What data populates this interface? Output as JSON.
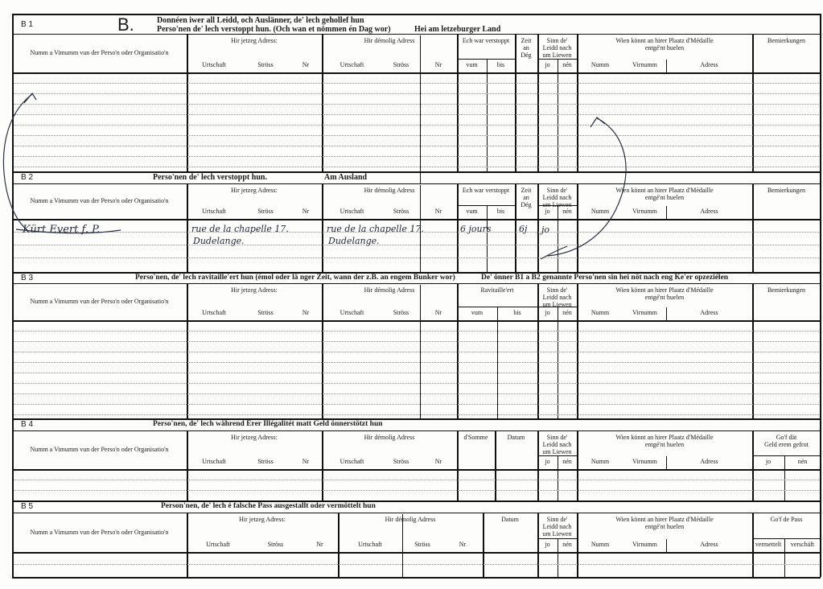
{
  "labels": {
    "name": "Numm a Vimumm vun der Perso'n oder Organisatio'n",
    "current": "Hir jetzeg Adress:",
    "previous": "Hir démolig Adress",
    "locality": "Urtschaft",
    "street": "Ströss",
    "nr": "Nr",
    "hidden": "Ech war verstoppt",
    "supplied": "Ravitaille'ert",
    "from": "vum",
    "to": "bis",
    "days": "Zeit\nan\nDég",
    "alive": "Sinn de'\nLeidd nach\num Liewen",
    "yes": "jo",
    "no": "nén",
    "medal": "Wien könnt an hirer Plaatz d'Médaille\nentgé'nt huelen",
    "surname": "Numm",
    "firstname": "Virnumm",
    "address": "Adress",
    "remarks": "Bemierkungen",
    "sum": "d'Somme",
    "date": "Datum",
    "money_back": "Go'f dät\nGeld erem gefrot",
    "pass": "Go'f de Pass",
    "issued": "vermettelt",
    "procured": "verschäft"
  },
  "form": {
    "letter": "B.",
    "b1": {
      "id": "B 1",
      "title": "Donnéen iwer all Leidd, och Auslänner, de' lech gehollef hun\nPerso'nen de' lech verstoppt hun. (Och wan et nömmen én Dag wor)",
      "title_extra": "Hei am letzeburger Land"
    },
    "b2": {
      "id": "B 2",
      "title": "Perso'nen de' lech verstoppt hun.",
      "title_extra": "Am Ausland"
    },
    "b3": {
      "id": "B 3",
      "title": "Perso'nen, de' lech ravitaille'ert hun (émol oder lä nger Zeit, wann der z.B. an engem Bunker wor)",
      "title_extra": "De' önner B1 a B2 genannte Perso'nen sin hei nöt nach eng Ke'er opzeziélen"
    },
    "b4": {
      "id": "B 4",
      "title": "Perso'nen, de' lech während Erer Illégalitét matt Geld önnerstötzt hun"
    },
    "b5": {
      "id": "B 5",
      "title": "Person'nen, de' lech é falsche Pass ausgestallt oder vermöttelt hun"
    }
  },
  "handwritten": {
    "b2_name": "Kürt Evert f. P.",
    "b2_current_line1": "rue de la chapelle 17.",
    "b2_current_line2": "Dudelange.",
    "b2_previous_line1": "rue de la chapelle 17.",
    "b2_previous_line2": "Dudelange.",
    "b2_from": "6 jours",
    "b2_days": "6j",
    "b2_alive": "jo"
  }
}
